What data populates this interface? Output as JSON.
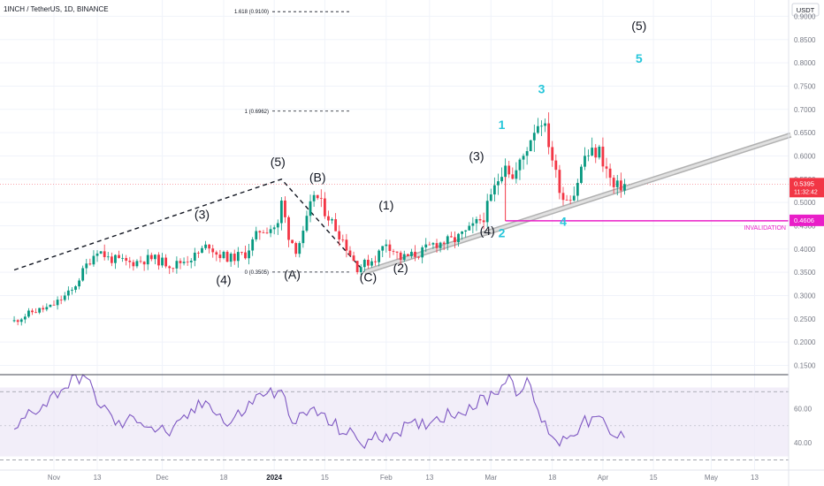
{
  "chart_data": {
    "type": "candlestick",
    "title": "1INCH / TetherUS, 1D, BINANCE",
    "currency": "USDT",
    "y_axis": {
      "ticks": [
        "0.9000",
        "0.8500",
        "0.8000",
        "0.7500",
        "0.7000",
        "0.6500",
        "0.6000",
        "0.5500",
        "0.5000",
        "0.4500",
        "0.4000",
        "0.3500",
        "0.3000",
        "0.2500",
        "0.2000",
        "0.1500"
      ],
      "range": [
        0.13,
        0.935
      ]
    },
    "x_axis": {
      "ticks": [
        {
          "label": "Nov",
          "date": "2023-11-01",
          "bold": false
        },
        {
          "label": "13",
          "date": "2023-11-13",
          "bold": false
        },
        {
          "label": "Dec",
          "date": "2023-12-01",
          "bold": false
        },
        {
          "label": "18",
          "date": "2023-12-18",
          "bold": false
        },
        {
          "label": "2024",
          "date": "2024-01-01",
          "bold": true
        },
        {
          "label": "15",
          "date": "2024-01-15",
          "bold": false
        },
        {
          "label": "Feb",
          "date": "2024-02-01",
          "bold": false
        },
        {
          "label": "13",
          "date": "2024-02-13",
          "bold": false
        },
        {
          "label": "Mar",
          "date": "2024-03-01",
          "bold": false
        },
        {
          "label": "18",
          "date": "2024-03-18",
          "bold": false
        },
        {
          "label": "Apr",
          "date": "2024-04-01",
          "bold": false
        },
        {
          "label": "15",
          "date": "2024-04-15",
          "bold": false
        },
        {
          "label": "May",
          "date": "2024-05-01",
          "bold": false
        },
        {
          "label": "13",
          "date": "2024-05-13",
          "bold": false
        }
      ]
    },
    "price_path": [
      {
        "date": "2023-10-21",
        "price": 0.245
      },
      {
        "date": "2023-10-26",
        "price": 0.265
      },
      {
        "date": "2023-10-31",
        "price": 0.275
      },
      {
        "date": "2023-11-06",
        "price": 0.31
      },
      {
        "date": "2023-11-10",
        "price": 0.365
      },
      {
        "date": "2023-11-13",
        "price": 0.4
      },
      {
        "date": "2023-11-16",
        "price": 0.38
      },
      {
        "date": "2023-11-22",
        "price": 0.37
      },
      {
        "date": "2023-11-28",
        "price": 0.38
      },
      {
        "date": "2023-12-04",
        "price": 0.365
      },
      {
        "date": "2023-12-10",
        "price": 0.385
      },
      {
        "date": "2023-12-14",
        "price": 0.41
      },
      {
        "date": "2023-12-16",
        "price": 0.39
      },
      {
        "date": "2023-12-20",
        "price": 0.38
      },
      {
        "date": "2023-12-24",
        "price": 0.39
      },
      {
        "date": "2023-12-28",
        "price": 0.44
      },
      {
        "date": "2024-01-02",
        "price": 0.45
      },
      {
        "date": "2024-01-03",
        "price": 0.5
      },
      {
        "date": "2024-01-05",
        "price": 0.43
      },
      {
        "date": "2024-01-07",
        "price": 0.4
      },
      {
        "date": "2024-01-09",
        "price": 0.43
      },
      {
        "date": "2024-01-12",
        "price": 0.52
      },
      {
        "date": "2024-01-16",
        "price": 0.47
      },
      {
        "date": "2024-01-20",
        "price": 0.42
      },
      {
        "date": "2024-01-24",
        "price": 0.36
      },
      {
        "date": "2024-01-29",
        "price": 0.38
      },
      {
        "date": "2024-02-01",
        "price": 0.415
      },
      {
        "date": "2024-02-05",
        "price": 0.38
      },
      {
        "date": "2024-02-10",
        "price": 0.39
      },
      {
        "date": "2024-02-14",
        "price": 0.41
      },
      {
        "date": "2024-02-20",
        "price": 0.42
      },
      {
        "date": "2024-02-24",
        "price": 0.44
      },
      {
        "date": "2024-02-28",
        "price": 0.47
      },
      {
        "date": "2024-03-02",
        "price": 0.53
      },
      {
        "date": "2024-03-05",
        "price": 0.59
      },
      {
        "date": "2024-03-07",
        "price": 0.55
      },
      {
        "date": "2024-03-10",
        "price": 0.6
      },
      {
        "date": "2024-03-13",
        "price": 0.66
      },
      {
        "date": "2024-03-15",
        "price": 0.68
      },
      {
        "date": "2024-03-17",
        "price": 0.63
      },
      {
        "date": "2024-03-19",
        "price": 0.56
      },
      {
        "date": "2024-03-21",
        "price": 0.51
      },
      {
        "date": "2024-03-24",
        "price": 0.52
      },
      {
        "date": "2024-03-27",
        "price": 0.6
      },
      {
        "date": "2024-03-31",
        "price": 0.61
      },
      {
        "date": "2024-04-02",
        "price": 0.57
      },
      {
        "date": "2024-04-04",
        "price": 0.53
      },
      {
        "date": "2024-04-07",
        "price": 0.5395
      }
    ],
    "current_price": {
      "label": "0.5395",
      "value": 0.5395,
      "countdown": "11:32:42",
      "color": "#f23645"
    },
    "invalidation": {
      "label": "INVALIDATION",
      "value": 0.4606,
      "price_label": "0.4606",
      "start_date": "2024-03-05",
      "color": "#e91ec8"
    },
    "fib_levels": [
      {
        "label": "1.618 (0.9100)",
        "value": 0.91
      },
      {
        "label": "1 (0.6962)",
        "value": 0.6962
      },
      {
        "label": "0 (0.3505)",
        "value": 0.3505
      }
    ],
    "wave_labels": [
      {
        "text": "(5)",
        "date": "2024-01-02",
        "price": 0.578,
        "color": "black"
      },
      {
        "text": "(3)",
        "date": "2023-12-12",
        "price": 0.465,
        "color": "black"
      },
      {
        "text": "(4)",
        "date": "2023-12-18",
        "price": 0.325,
        "color": "black"
      },
      {
        "text": "(A)",
        "date": "2024-01-06",
        "price": 0.336,
        "color": "black"
      },
      {
        "text": "(B)",
        "date": "2024-01-13",
        "price": 0.545,
        "color": "black"
      },
      {
        "text": "(C)",
        "date": "2024-01-27",
        "price": 0.33,
        "color": "black"
      },
      {
        "text": "(1)",
        "date": "2024-02-01",
        "price": 0.485,
        "color": "black"
      },
      {
        "text": "(2)",
        "date": "2024-02-05",
        "price": 0.35,
        "color": "black"
      },
      {
        "text": "(3)",
        "date": "2024-02-26",
        "price": 0.59,
        "color": "black"
      },
      {
        "text": "(4)",
        "date": "2024-02-29",
        "price": 0.43,
        "color": "black"
      },
      {
        "text": "(5)",
        "date": "2024-04-11",
        "price": 0.87,
        "color": "black"
      },
      {
        "text": "1",
        "date": "2024-03-04",
        "price": 0.658,
        "color": "cyan"
      },
      {
        "text": "2",
        "date": "2024-03-04",
        "price": 0.425,
        "color": "cyan"
      },
      {
        "text": "3",
        "date": "2024-03-15",
        "price": 0.735,
        "color": "cyan"
      },
      {
        "text": "4",
        "date": "2024-03-21",
        "price": 0.45,
        "color": "cyan"
      },
      {
        "text": "5",
        "date": "2024-04-11",
        "price": 0.8,
        "color": "cyan"
      }
    ],
    "trendlines": [
      {
        "kind": "dashed",
        "points": [
          {
            "date": "2023-10-21",
            "price": 0.355
          },
          {
            "date": "2024-01-03",
            "price": 0.55
          },
          {
            "date": "2024-01-26",
            "price": 0.3505
          }
        ]
      },
      {
        "kind": "channel",
        "points": [
          {
            "date": "2024-01-26",
            "price": 0.3505
          },
          {
            "date": "2024-05-23",
            "price": 0.645
          }
        ]
      }
    ],
    "rsi": {
      "ticks": [
        "60.00",
        "40.00"
      ],
      "range": [
        24,
        80
      ],
      "band": [
        30,
        70
      ],
      "path": [
        {
          "date": "2023-10-21",
          "value": 45
        },
        {
          "date": "2023-10-25",
          "value": 58
        },
        {
          "date": "2023-10-29",
          "value": 62
        },
        {
          "date": "2023-11-02",
          "value": 70
        },
        {
          "date": "2023-11-06",
          "value": 76
        },
        {
          "date": "2023-11-09",
          "value": 80
        },
        {
          "date": "2023-11-14",
          "value": 62
        },
        {
          "date": "2023-11-19",
          "value": 50
        },
        {
          "date": "2023-11-24",
          "value": 55
        },
        {
          "date": "2023-11-29",
          "value": 48
        },
        {
          "date": "2023-12-04",
          "value": 46
        },
        {
          "date": "2023-12-09",
          "value": 58
        },
        {
          "date": "2023-12-14",
          "value": 65
        },
        {
          "date": "2023-12-19",
          "value": 50
        },
        {
          "date": "2023-12-24",
          "value": 60
        },
        {
          "date": "2023-12-29",
          "value": 70
        },
        {
          "date": "2024-01-03",
          "value": 68
        },
        {
          "date": "2024-01-07",
          "value": 52
        },
        {
          "date": "2024-01-12",
          "value": 60
        },
        {
          "date": "2024-01-16",
          "value": 52
        },
        {
          "date": "2024-01-21",
          "value": 46
        },
        {
          "date": "2024-01-26",
          "value": 40
        },
        {
          "date": "2024-01-31",
          "value": 44
        },
        {
          "date": "2024-02-05",
          "value": 48
        },
        {
          "date": "2024-02-10",
          "value": 50
        },
        {
          "date": "2024-02-15",
          "value": 55
        },
        {
          "date": "2024-02-20",
          "value": 58
        },
        {
          "date": "2024-02-25",
          "value": 62
        },
        {
          "date": "2024-02-29",
          "value": 66
        },
        {
          "date": "2024-03-04",
          "value": 74
        },
        {
          "date": "2024-03-06",
          "value": 80
        },
        {
          "date": "2024-03-08",
          "value": 72
        },
        {
          "date": "2024-03-11",
          "value": 74
        },
        {
          "date": "2024-03-13",
          "value": 66
        },
        {
          "date": "2024-03-15",
          "value": 52
        },
        {
          "date": "2024-03-17",
          "value": 48
        },
        {
          "date": "2024-03-20",
          "value": 40
        },
        {
          "date": "2024-03-23",
          "value": 46
        },
        {
          "date": "2024-03-26",
          "value": 50
        },
        {
          "date": "2024-03-29",
          "value": 54
        },
        {
          "date": "2024-04-01",
          "value": 52
        },
        {
          "date": "2024-04-03",
          "value": 44
        },
        {
          "date": "2024-04-07",
          "value": 43
        }
      ]
    }
  }
}
